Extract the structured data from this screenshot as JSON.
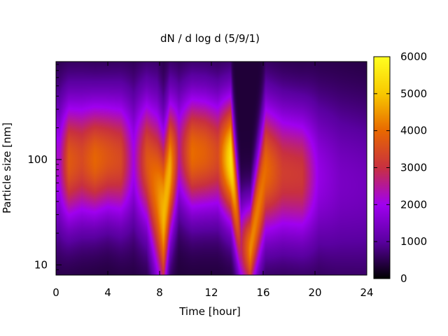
{
  "chart_data": {
    "type": "heatmap",
    "title": "dN / d log d (5/9/1)",
    "xlabel": "Time [hour]",
    "ylabel": "Particle size [nm]",
    "xlim": [
      0,
      24
    ],
    "ylim": [
      8,
      850
    ],
    "y_scale": "log",
    "x_ticks": [
      0,
      4,
      8,
      12,
      16,
      20,
      24
    ],
    "x_tick_labels": [
      "0",
      "4",
      "8",
      "12",
      "16",
      "20",
      "24"
    ],
    "y_ticks": [
      10,
      100
    ],
    "y_tick_labels": [
      "10",
      "100"
    ],
    "colorbar": {
      "min": 0,
      "max": 6000,
      "ticks": [
        0,
        1000,
        2000,
        3000,
        4000,
        5000,
        6000
      ],
      "tick_labels": [
        "0",
        "1000",
        "2000",
        "3000",
        "4000",
        "5000",
        "6000"
      ],
      "colormap": [
        "#000000",
        "#5a00a0",
        "#a000f0",
        "#c83040",
        "#e86800",
        "#f8c800",
        "#ffff20"
      ]
    },
    "size_distribution_by_time": [
      {
        "t": 0.3,
        "peak_d": 90,
        "peak": 1900,
        "width": 0.45
      },
      {
        "t": 1.0,
        "peak_d": 95,
        "peak": 3400,
        "width": 0.42
      },
      {
        "t": 2.0,
        "peak_d": 100,
        "peak": 3100,
        "width": 0.42
      },
      {
        "t": 3.0,
        "peak_d": 100,
        "peak": 3600,
        "width": 0.4
      },
      {
        "t": 4.0,
        "peak_d": 105,
        "peak": 3300,
        "width": 0.4
      },
      {
        "t": 5.0,
        "peak_d": 100,
        "peak": 3100,
        "width": 0.42
      },
      {
        "t": 6.0,
        "peak_d": 100,
        "peak": 1700,
        "width": 0.45
      },
      {
        "t": 7.0,
        "peak_d": 95,
        "peak": 3300,
        "width": 0.45
      },
      {
        "t": 7.8,
        "peak_d": 50,
        "peak": 3900,
        "width": 0.55
      },
      {
        "t": 8.3,
        "peak_d": 30,
        "peak": 4500,
        "width": 0.55
      },
      {
        "t": 8.8,
        "peak_d": 80,
        "peak": 4400,
        "width": 0.45
      },
      {
        "t": 9.5,
        "peak_d": 120,
        "peak": 2200,
        "width": 0.4
      },
      {
        "t": 10.5,
        "peak_d": 115,
        "peak": 3700,
        "width": 0.4
      },
      {
        "t": 11.5,
        "peak_d": 115,
        "peak": 3500,
        "width": 0.4
      },
      {
        "t": 12.5,
        "peak_d": 110,
        "peak": 3100,
        "width": 0.4
      },
      {
        "t": 13.5,
        "peak_d": 100,
        "peak": 5200,
        "width": 0.4
      },
      {
        "t": 14.3,
        "peak_d": 15,
        "peak": 2400,
        "width": 0.3
      },
      {
        "t": 15.0,
        "peak_d": 14,
        "peak": 4000,
        "width": 0.3
      },
      {
        "t": 16.2,
        "peak_d": 80,
        "peak": 3700,
        "width": 0.45
      },
      {
        "t": 17.5,
        "peak_d": 75,
        "peak": 2900,
        "width": 0.45
      },
      {
        "t": 19.0,
        "peak_d": 70,
        "peak": 2800,
        "width": 0.45
      },
      {
        "t": 20.3,
        "peak_d": 70,
        "peak": 1500,
        "width": 0.5
      },
      {
        "t": 22.0,
        "peak_d": 60,
        "peak": 1100,
        "width": 0.55
      },
      {
        "t": 24.0,
        "peak_d": 55,
        "peak": 1000,
        "width": 0.55
      }
    ]
  }
}
